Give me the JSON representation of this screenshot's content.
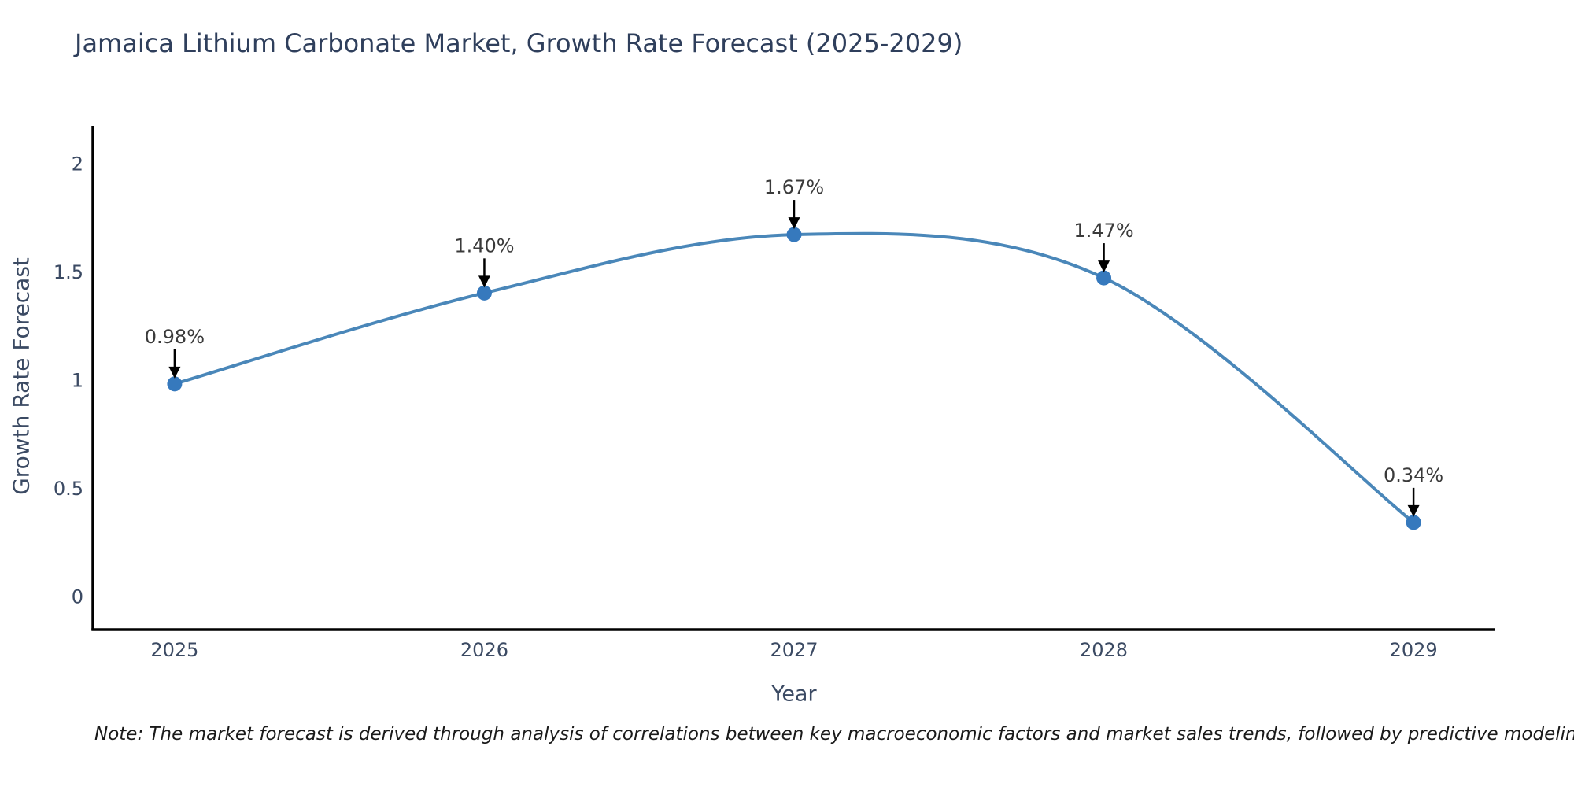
{
  "chart_data": {
    "type": "line",
    "title": "Jamaica Lithium Carbonate Market, Growth Rate Forecast (2025-2029)",
    "xlabel": "Year",
    "ylabel": "Growth Rate Forecast",
    "x": [
      2025,
      2026,
      2027,
      2028,
      2029
    ],
    "values": [
      0.98,
      1.4,
      1.67,
      1.47,
      0.34
    ],
    "point_labels": [
      "0.98%",
      "1.40%",
      "1.67%",
      "1.47%",
      "0.34%"
    ],
    "xtick_labels": [
      "2025",
      "2026",
      "2027",
      "2028",
      "2029"
    ],
    "ytick_values": [
      0,
      0.5,
      1,
      1.5,
      2
    ],
    "ytick_labels": [
      "0",
      "0.5",
      "1",
      "1.5",
      "2"
    ],
    "xlim": [
      2024.736,
      2029.264
    ],
    "ylim": [
      -0.155,
      2.172
    ],
    "grid": false,
    "legend": "none",
    "colors": {
      "line": "#4a87b9",
      "marker": "#3679bd",
      "arrow": "#000000",
      "axis": "#000000"
    }
  },
  "note": "Note: The market forecast is derived through analysis of correlations between key macroeconomic factors and market sales trends, followed by predictive modeling to project future sales trends."
}
